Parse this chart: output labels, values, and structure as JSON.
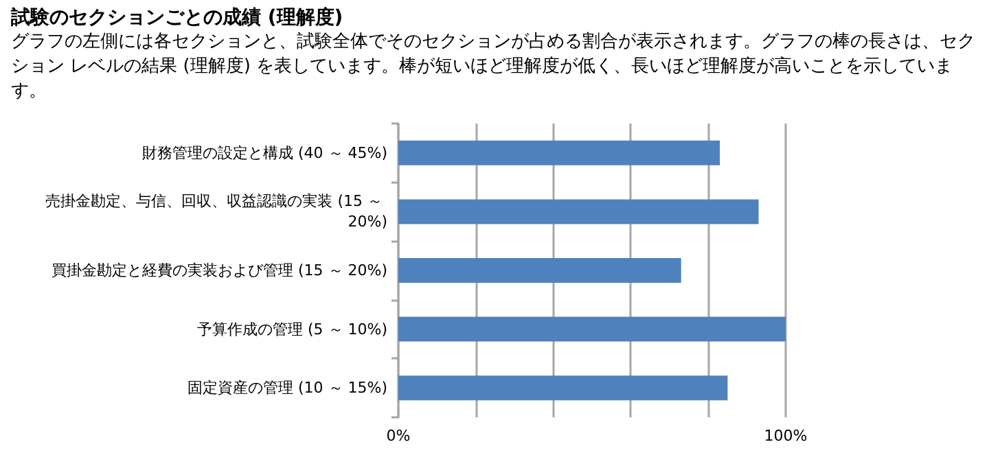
{
  "chart_data": {
    "type": "bar",
    "orientation": "horizontal",
    "title": "試験のセクションごとの成績 (理解度)",
    "subtitle": "グラフの左側には各セクションと、試験全体でそのセクションが占める割合が表示されます。グラフの棒の長さは、セクション レベルの結果 (理解度) を表しています。棒が短いほど理解度が低く、長いほど理解度が高いことを示しています。",
    "categories": [
      "財務管理の設定と構成 (40 ～ 45%)",
      "売掛金勘定、与信、回収、収益認識の実装 (15 ～ 20%)",
      "買掛金勘定と経費の実装および管理 (15 ～ 20%)",
      "予算作成の管理 (5 ～ 10%)",
      "固定資産の管理 (10 ～ 15%)"
    ],
    "values": [
      83,
      93,
      73,
      100,
      85
    ],
    "color": "#4f81bd",
    "xlim": [
      0,
      100
    ],
    "xticks": [
      {
        "value": 0,
        "label": "0%"
      },
      {
        "value": 20,
        "label": null
      },
      {
        "value": 40,
        "label": null
      },
      {
        "value": 60,
        "label": null
      },
      {
        "value": 80,
        "label": null
      },
      {
        "value": 100,
        "label": "100%"
      }
    ],
    "grid": "x"
  }
}
